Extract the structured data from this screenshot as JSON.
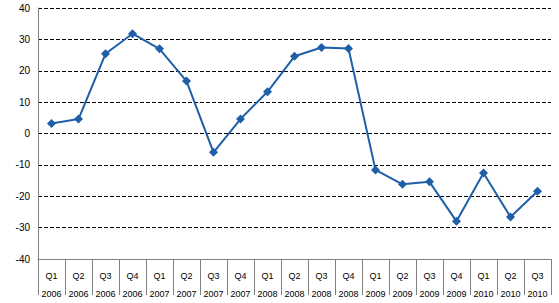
{
  "chart_data": {
    "type": "line",
    "categories": [
      "Q1\n2006",
      "Q2\n2006",
      "Q3\n2006",
      "Q4\n2006",
      "Q1\n2007",
      "Q2\n2007",
      "Q3\n2007",
      "Q4\n2007",
      "Q1\n2008",
      "Q2\n2008",
      "Q3\n2008",
      "Q4\n2008",
      "Q1\n2009",
      "Q2\n2009",
      "Q3\n2009",
      "Q4\n2009",
      "Q1\n2010",
      "Q2\n2010",
      "Q3\n2010"
    ],
    "values": [
      3.2,
      4.6,
      25.4,
      31.8,
      27.0,
      16.7,
      -6.0,
      4.6,
      13.3,
      24.6,
      27.4,
      27.1,
      -11.6,
      -16.2,
      -15.4,
      -28.0,
      -12.6,
      -26.6,
      -18.4
    ],
    "color": "#1f5fa8",
    "marker": "diamond",
    "line_style": "solid",
    "ylim": [
      -40,
      40
    ],
    "yticks": [
      -40,
      -30,
      -20,
      -10,
      0,
      10,
      20,
      30,
      40
    ],
    "grid": true
  }
}
